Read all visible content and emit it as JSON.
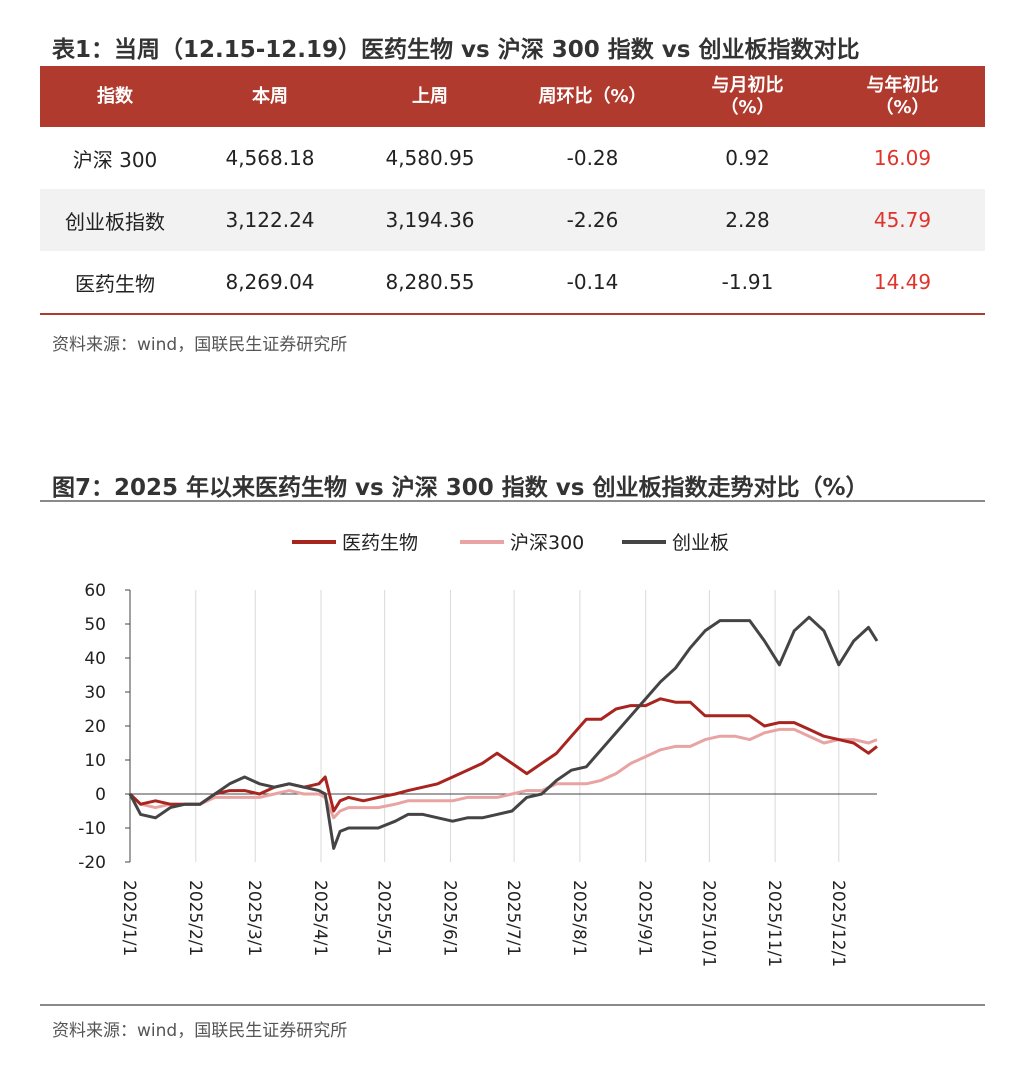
{
  "table": {
    "title": "表1：当周（12.15-12.19）医药生物 vs 沪深 300 指数 vs 创业板指数对比",
    "headers": [
      "指数",
      "本周",
      "上周",
      "周环比（%）",
      "与月初比\n（%）",
      "与年初比\n（%）"
    ],
    "rows": [
      [
        "沪深 300",
        "4,568.18",
        "4,580.95",
        "-0.28",
        "0.92",
        "16.09"
      ],
      [
        "创业板指数",
        "3,122.24",
        "3,194.36",
        "-2.26",
        "2.28",
        "45.79"
      ],
      [
        "医药生物",
        "8,269.04",
        "8,280.55",
        "-0.14",
        "-1.91",
        "14.49"
      ]
    ],
    "source": "资料来源：wind，国联民生证券研究所",
    "accent_color": "#b03a2e",
    "highlight_color": "#e0332b"
  },
  "chart_data": {
    "type": "line",
    "title": "图7：2025 年以来医药生物 vs 沪深 300 指数 vs 创业板指数走势对比（%）",
    "xlabel": "",
    "ylabel": "",
    "ylim": [
      -20,
      60
    ],
    "yticks": [
      60,
      50,
      40,
      30,
      20,
      10,
      0,
      -10,
      -20
    ],
    "x_ticks": [
      "2025/1/1",
      "2025/2/1",
      "2025/3/1",
      "2025/4/1",
      "2025/5/1",
      "2025/6/1",
      "2025/7/1",
      "2025/8/1",
      "2025/9/1",
      "2025/10/1",
      "2025/11/1",
      "2025/12/1"
    ],
    "x_start": "2025-01-01",
    "x_end": "2025-12-19",
    "grid": "vertical",
    "legend_position": "top",
    "series": [
      {
        "name": "医药生物",
        "color": "#a8251f",
        "points": [
          [
            "2025-01-01",
            0
          ],
          [
            "2025-01-06",
            -3
          ],
          [
            "2025-01-13",
            -2
          ],
          [
            "2025-01-20",
            -3
          ],
          [
            "2025-01-27",
            -3
          ],
          [
            "2025-02-03",
            -3
          ],
          [
            "2025-02-10",
            0
          ],
          [
            "2025-02-17",
            1
          ],
          [
            "2025-02-24",
            1
          ],
          [
            "2025-03-03",
            0
          ],
          [
            "2025-03-10",
            2
          ],
          [
            "2025-03-17",
            3
          ],
          [
            "2025-03-24",
            2
          ],
          [
            "2025-03-31",
            3
          ],
          [
            "2025-04-03",
            5
          ],
          [
            "2025-04-07",
            -5
          ],
          [
            "2025-04-10",
            -2
          ],
          [
            "2025-04-14",
            -1
          ],
          [
            "2025-04-21",
            -2
          ],
          [
            "2025-04-28",
            -1
          ],
          [
            "2025-05-06",
            0
          ],
          [
            "2025-05-12",
            1
          ],
          [
            "2025-05-19",
            2
          ],
          [
            "2025-05-26",
            3
          ],
          [
            "2025-06-02",
            5
          ],
          [
            "2025-06-09",
            7
          ],
          [
            "2025-06-16",
            9
          ],
          [
            "2025-06-23",
            12
          ],
          [
            "2025-06-30",
            9
          ],
          [
            "2025-07-07",
            6
          ],
          [
            "2025-07-14",
            9
          ],
          [
            "2025-07-21",
            12
          ],
          [
            "2025-07-28",
            17
          ],
          [
            "2025-08-04",
            22
          ],
          [
            "2025-08-11",
            22
          ],
          [
            "2025-08-18",
            25
          ],
          [
            "2025-08-25",
            26
          ],
          [
            "2025-09-01",
            26
          ],
          [
            "2025-09-08",
            28
          ],
          [
            "2025-09-15",
            27
          ],
          [
            "2025-09-22",
            27
          ],
          [
            "2025-09-29",
            23
          ],
          [
            "2025-10-06",
            23
          ],
          [
            "2025-10-13",
            23
          ],
          [
            "2025-10-20",
            23
          ],
          [
            "2025-10-27",
            20
          ],
          [
            "2025-11-03",
            21
          ],
          [
            "2025-11-10",
            21
          ],
          [
            "2025-11-17",
            19
          ],
          [
            "2025-11-24",
            17
          ],
          [
            "2025-12-01",
            16
          ],
          [
            "2025-12-08",
            15
          ],
          [
            "2025-12-15",
            12
          ],
          [
            "2025-12-19",
            14
          ]
        ]
      },
      {
        "name": "沪深300",
        "color": "#e8a3a3",
        "points": [
          [
            "2025-01-01",
            0
          ],
          [
            "2025-01-06",
            -3
          ],
          [
            "2025-01-13",
            -4
          ],
          [
            "2025-01-20",
            -3
          ],
          [
            "2025-01-27",
            -3
          ],
          [
            "2025-02-03",
            -3
          ],
          [
            "2025-02-10",
            -1
          ],
          [
            "2025-02-17",
            -1
          ],
          [
            "2025-02-24",
            -1
          ],
          [
            "2025-03-03",
            -1
          ],
          [
            "2025-03-10",
            0
          ],
          [
            "2025-03-17",
            1
          ],
          [
            "2025-03-24",
            0
          ],
          [
            "2025-03-31",
            0
          ],
          [
            "2025-04-03",
            -1
          ],
          [
            "2025-04-07",
            -7
          ],
          [
            "2025-04-10",
            -5
          ],
          [
            "2025-04-14",
            -4
          ],
          [
            "2025-04-21",
            -4
          ],
          [
            "2025-04-28",
            -4
          ],
          [
            "2025-05-06",
            -3
          ],
          [
            "2025-05-12",
            -2
          ],
          [
            "2025-05-19",
            -2
          ],
          [
            "2025-05-26",
            -2
          ],
          [
            "2025-06-02",
            -2
          ],
          [
            "2025-06-09",
            -1
          ],
          [
            "2025-06-16",
            -1
          ],
          [
            "2025-06-23",
            -1
          ],
          [
            "2025-06-30",
            0
          ],
          [
            "2025-07-07",
            1
          ],
          [
            "2025-07-14",
            1
          ],
          [
            "2025-07-21",
            3
          ],
          [
            "2025-07-28",
            3
          ],
          [
            "2025-08-04",
            3
          ],
          [
            "2025-08-11",
            4
          ],
          [
            "2025-08-18",
            6
          ],
          [
            "2025-08-25",
            9
          ],
          [
            "2025-09-01",
            11
          ],
          [
            "2025-09-08",
            13
          ],
          [
            "2025-09-15",
            14
          ],
          [
            "2025-09-22",
            14
          ],
          [
            "2025-09-29",
            16
          ],
          [
            "2025-10-06",
            17
          ],
          [
            "2025-10-13",
            17
          ],
          [
            "2025-10-20",
            16
          ],
          [
            "2025-10-27",
            18
          ],
          [
            "2025-11-03",
            19
          ],
          [
            "2025-11-10",
            19
          ],
          [
            "2025-11-17",
            17
          ],
          [
            "2025-11-24",
            15
          ],
          [
            "2025-12-01",
            16
          ],
          [
            "2025-12-08",
            16
          ],
          [
            "2025-12-15",
            15
          ],
          [
            "2025-12-19",
            16
          ]
        ]
      },
      {
        "name": "创业板",
        "color": "#444444",
        "points": [
          [
            "2025-01-01",
            0
          ],
          [
            "2025-01-06",
            -6
          ],
          [
            "2025-01-13",
            -7
          ],
          [
            "2025-01-20",
            -4
          ],
          [
            "2025-01-27",
            -3
          ],
          [
            "2025-02-03",
            -3
          ],
          [
            "2025-02-10",
            0
          ],
          [
            "2025-02-17",
            3
          ],
          [
            "2025-02-24",
            5
          ],
          [
            "2025-03-03",
            3
          ],
          [
            "2025-03-10",
            2
          ],
          [
            "2025-03-17",
            3
          ],
          [
            "2025-03-24",
            2
          ],
          [
            "2025-03-31",
            1
          ],
          [
            "2025-04-03",
            0
          ],
          [
            "2025-04-07",
            -16
          ],
          [
            "2025-04-10",
            -11
          ],
          [
            "2025-04-14",
            -10
          ],
          [
            "2025-04-21",
            -10
          ],
          [
            "2025-04-28",
            -10
          ],
          [
            "2025-05-06",
            -8
          ],
          [
            "2025-05-12",
            -6
          ],
          [
            "2025-05-19",
            -6
          ],
          [
            "2025-05-26",
            -7
          ],
          [
            "2025-06-02",
            -8
          ],
          [
            "2025-06-09",
            -7
          ],
          [
            "2025-06-16",
            -7
          ],
          [
            "2025-06-23",
            -6
          ],
          [
            "2025-06-30",
            -5
          ],
          [
            "2025-07-07",
            -1
          ],
          [
            "2025-07-14",
            0
          ],
          [
            "2025-07-21",
            4
          ],
          [
            "2025-07-28",
            7
          ],
          [
            "2025-08-04",
            8
          ],
          [
            "2025-08-11",
            13
          ],
          [
            "2025-08-18",
            18
          ],
          [
            "2025-08-25",
            23
          ],
          [
            "2025-09-01",
            28
          ],
          [
            "2025-09-08",
            33
          ],
          [
            "2025-09-15",
            37
          ],
          [
            "2025-09-22",
            43
          ],
          [
            "2025-09-29",
            48
          ],
          [
            "2025-10-06",
            51
          ],
          [
            "2025-10-13",
            51
          ],
          [
            "2025-10-20",
            51
          ],
          [
            "2025-10-27",
            45
          ],
          [
            "2025-11-03",
            38
          ],
          [
            "2025-11-10",
            48
          ],
          [
            "2025-11-17",
            52
          ],
          [
            "2025-11-24",
            48
          ],
          [
            "2025-12-01",
            38
          ],
          [
            "2025-12-08",
            45
          ],
          [
            "2025-12-15",
            49
          ],
          [
            "2025-12-19",
            45
          ]
        ]
      }
    ],
    "source": "资料来源：wind，国联民生证券研究所"
  }
}
